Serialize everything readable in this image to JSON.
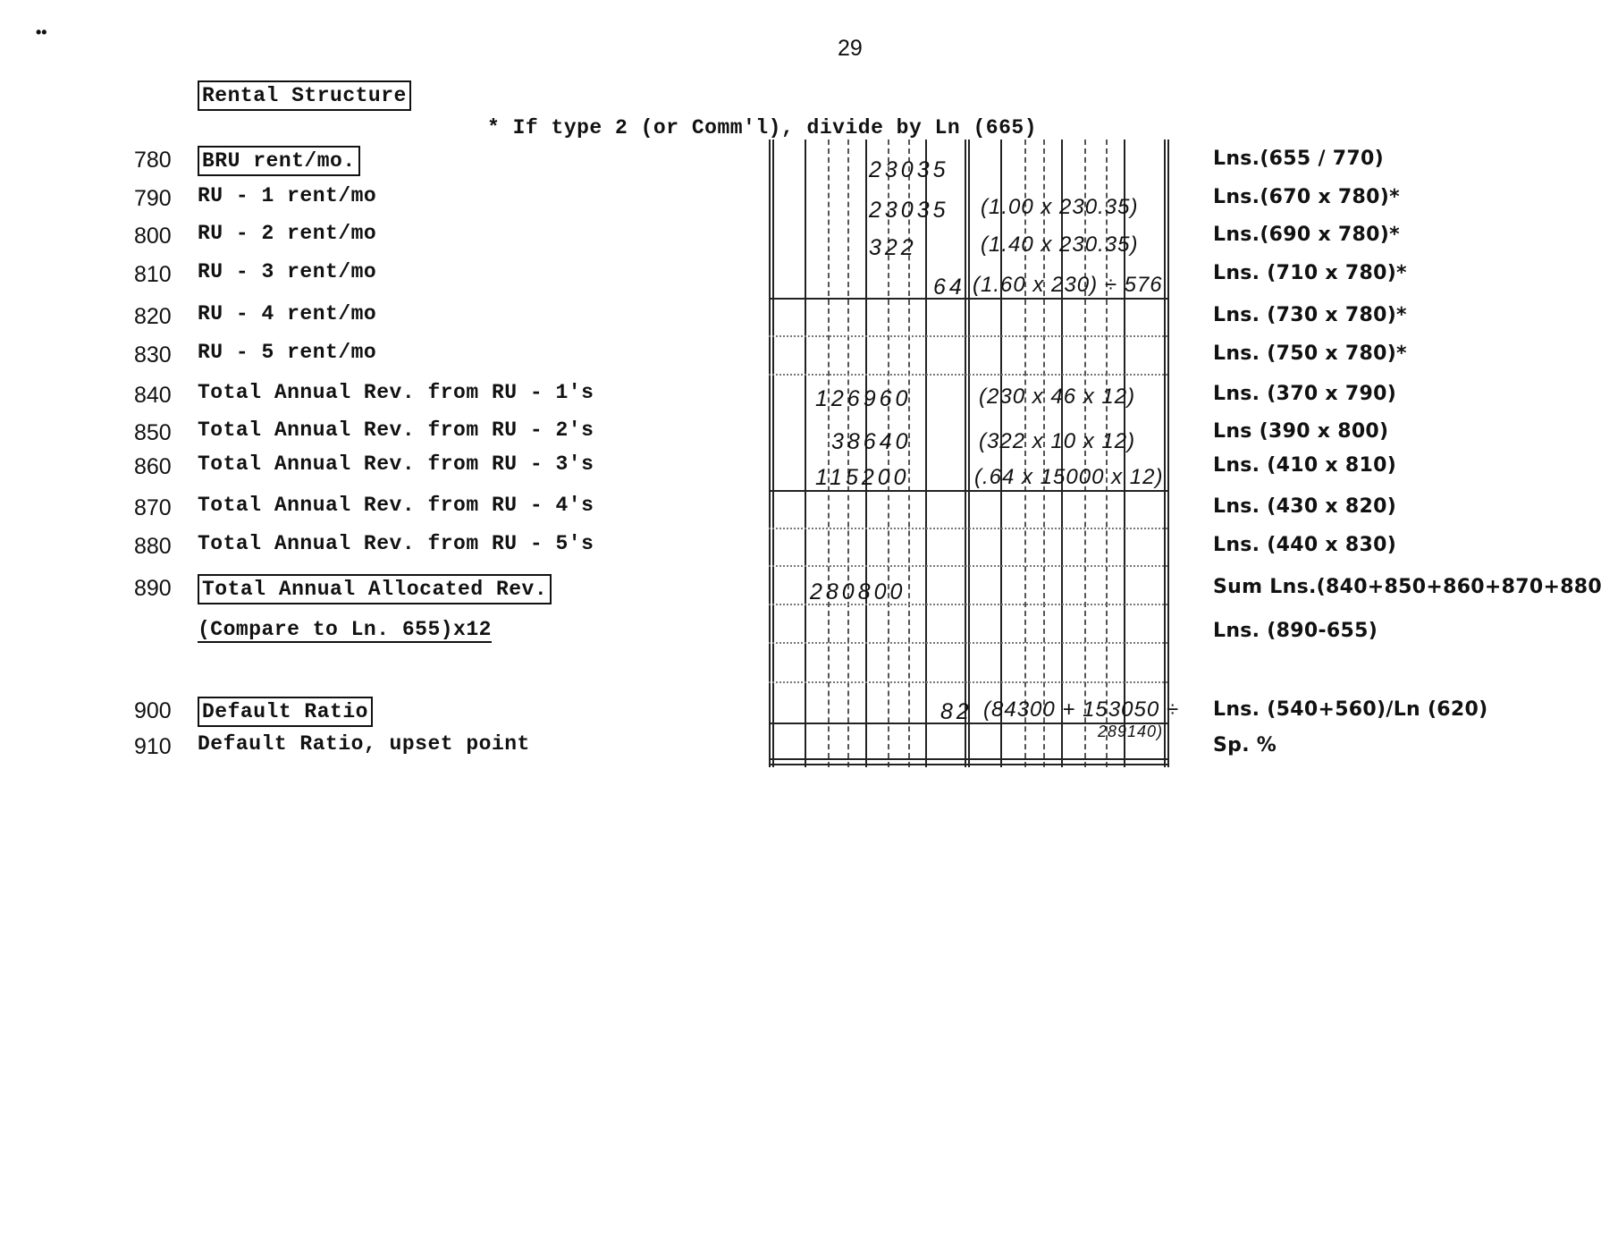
{
  "page_number": "29",
  "corner_mark": "••",
  "section_title": "Rental Structure",
  "note": "* If type 2 (or Comm'l), divide by Ln (665)",
  "rows": [
    {
      "line": "780",
      "label": "BRU rent/mo.",
      "boxed": true,
      "entry": "23035",
      "calc": "",
      "formula": "Lns.(655 / 770)"
    },
    {
      "line": "790",
      "label": "RU - 1 rent/mo",
      "entry": "23035",
      "calc": "(1.00 x 230.35)",
      "formula": "Lns.(670 x 780)*"
    },
    {
      "line": "800",
      "label": "RU - 2 rent/mo",
      "entry": "322",
      "calc": "(1.40 x 230.35)",
      "formula": "Lns.(690 x 780)*"
    },
    {
      "line": "810",
      "label": "RU - 3 rent/mo",
      "entry": "64",
      "calc": "(1.60 x 230) ÷ 576",
      "formula": "Lns. (710 x 780)*"
    },
    {
      "line": "820",
      "label": "RU - 4 rent/mo",
      "entry": "",
      "calc": "",
      "formula": "Lns. (730 x 780)*"
    },
    {
      "line": "830",
      "label": "RU - 5 rent/mo",
      "entry": "",
      "calc": "",
      "formula": "Lns. (750 x 780)*"
    },
    {
      "line": "840",
      "label": "Total Annual Rev. from RU - 1's",
      "entry": "126960",
      "calc": "(230 x 46 x 12)",
      "formula": "Lns. (370 x 790)"
    },
    {
      "line": "850",
      "label": "Total Annual Rev. from RU - 2's",
      "entry": "38640",
      "calc": "(322 x 10 x 12)",
      "formula": "Lns (390 x 800)"
    },
    {
      "line": "860",
      "label": "Total Annual Rev. from RU - 3's",
      "entry": "115200",
      "calc": "(.64 x 15000 x 12)",
      "formula": "Lns. (410 x 810)"
    },
    {
      "line": "870",
      "label": "Total Annual Rev. from RU - 4's",
      "entry": "",
      "calc": "",
      "formula": "Lns. (430 x 820)"
    },
    {
      "line": "880",
      "label": "Total Annual Rev. from RU - 5's",
      "entry": "",
      "calc": "",
      "formula": "Lns. (440 x 830)"
    },
    {
      "line": "890",
      "label": "Total Annual Allocated Rev.",
      "boxed": true,
      "entry": "280800",
      "calc": "",
      "formula": "Sum Lns.(840+850+860+870+880)"
    },
    {
      "line": "",
      "label": "(Compare to Ln. 655)x12",
      "entry": "",
      "calc": "",
      "formula": "Lns. (890-655)"
    },
    {
      "line": "900",
      "label": "Default Ratio",
      "boxed": true,
      "entry": "82",
      "calc": "(84300 + 153050 ÷",
      "formula": "Lns. (540+560)/Ln (620)"
    },
    {
      "line": "910",
      "label": "Default Ratio, upset point",
      "entry": "",
      "calc": "289140)",
      "formula": "Sp. %"
    }
  ]
}
